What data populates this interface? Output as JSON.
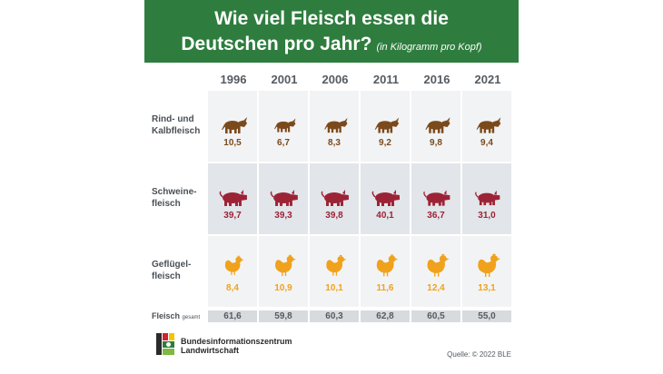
{
  "header": {
    "title_line1": "Wie viel Fleisch essen die",
    "title_line2": "Deutschen pro Jahr?",
    "subtitle": "(in Kilogramm pro Kopf)"
  },
  "colors": {
    "header_bg": "#2e7d3e",
    "beef": "#7b4a1c",
    "pork": "#9c2336",
    "poultry": "#f0a21c"
  },
  "chart_data": {
    "type": "table",
    "unit": "Kilogramm pro Kopf",
    "years": [
      "1996",
      "2001",
      "2006",
      "2011",
      "2016",
      "2021"
    ],
    "rows": [
      {
        "name": "Rind- und Kalbfleisch",
        "label_lines": [
          "Rind- und",
          "Kalbfleisch"
        ],
        "icon": "cow-icon",
        "values": [
          10.5,
          6.7,
          8.3,
          9.2,
          9.8,
          9.4
        ],
        "display": [
          "10,5",
          "6,7",
          "8,3",
          "9,2",
          "9,8",
          "9,4"
        ]
      },
      {
        "name": "Schweinefleisch",
        "label_lines": [
          "Schweine-",
          "fleisch"
        ],
        "icon": "pig-icon",
        "values": [
          39.7,
          39.3,
          39.8,
          40.1,
          36.7,
          31.0
        ],
        "display": [
          "39,7",
          "39,3",
          "39,8",
          "40,1",
          "36,7",
          "31,0"
        ]
      },
      {
        "name": "Geflügelfleisch",
        "label_lines": [
          "Geflügel-",
          "fleisch"
        ],
        "icon": "chicken-icon",
        "values": [
          8.4,
          10.9,
          10.1,
          11.6,
          12.4,
          13.1
        ],
        "display": [
          "8,4",
          "10,9",
          "10,1",
          "11,6",
          "12,4",
          "13,1"
        ]
      }
    ],
    "total": {
      "label": "Fleisch",
      "label_small": "gesamt",
      "values": [
        61.6,
        59.8,
        60.3,
        62.8,
        60.5,
        55.0
      ],
      "display": [
        "61,6",
        "59,8",
        "60,3",
        "62,8",
        "60,5",
        "55,0"
      ]
    }
  },
  "footer": {
    "org_line1": "Bundesinformationszentrum",
    "org_line2": "Landwirtschaft",
    "source": "Quelle: © 2022 BLE"
  }
}
